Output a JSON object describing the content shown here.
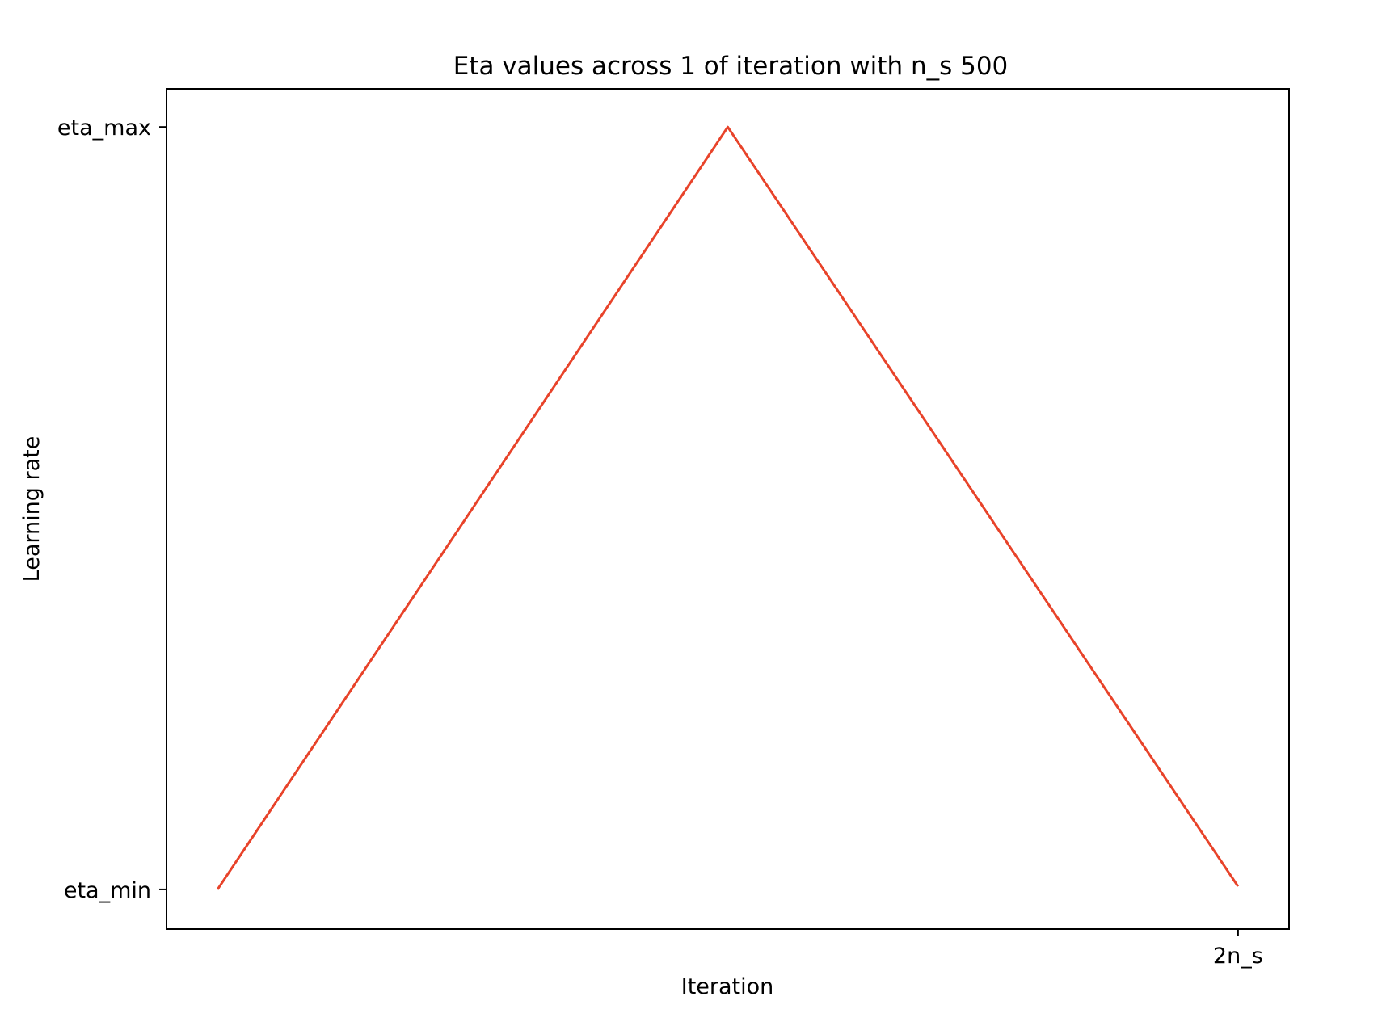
{
  "chart_data": {
    "type": "line",
    "title": "Eta values across 1 of iteration with n_s  500",
    "xlabel": "Iteration",
    "ylabel": "Learning rate",
    "x_ticks": [
      {
        "value": 1000,
        "label": "2n_s"
      }
    ],
    "y_ticks": [
      {
        "value": 0,
        "label": "eta_min"
      },
      {
        "value": 1,
        "label": "eta_max"
      }
    ],
    "xlim": [
      -50,
      1050
    ],
    "ylim": [
      -0.052,
      1.05
    ],
    "grid": false,
    "legend": "none",
    "series": [
      {
        "color": "#e8432a",
        "x": [
          0,
          500,
          1000
        ],
        "y": [
          0,
          1,
          0.004
        ]
      }
    ]
  }
}
